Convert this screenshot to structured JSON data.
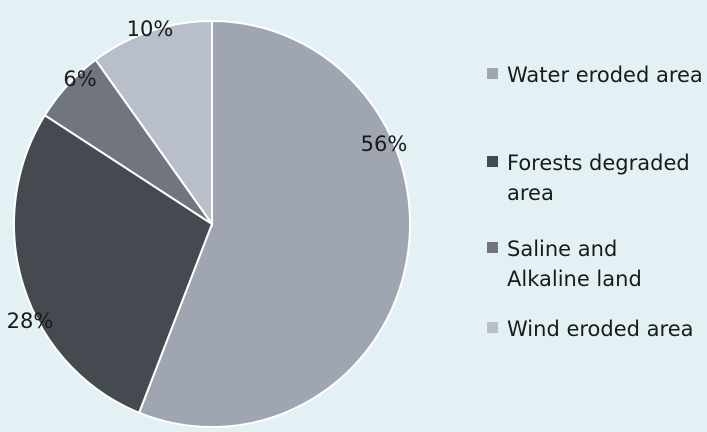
{
  "chart_data": {
    "type": "pie",
    "title": "",
    "slices": [
      {
        "label": "Water eroded area",
        "value": 56,
        "display": "56%",
        "color": "#a0a6b1"
      },
      {
        "label": "Forests degraded area",
        "value": 28,
        "display": "28%",
        "color": "#454950"
      },
      {
        "label": "Saline and Alkaline land",
        "value": 6,
        "display": "6%",
        "color": "#70757e"
      },
      {
        "label": "Wind eroded area",
        "value": 10,
        "display": "10%",
        "color": "#b9bfca"
      }
    ],
    "start_angle_deg": 0,
    "direction": "clockwise",
    "legend_position": "right",
    "slice_border_color": "#ffffff"
  }
}
